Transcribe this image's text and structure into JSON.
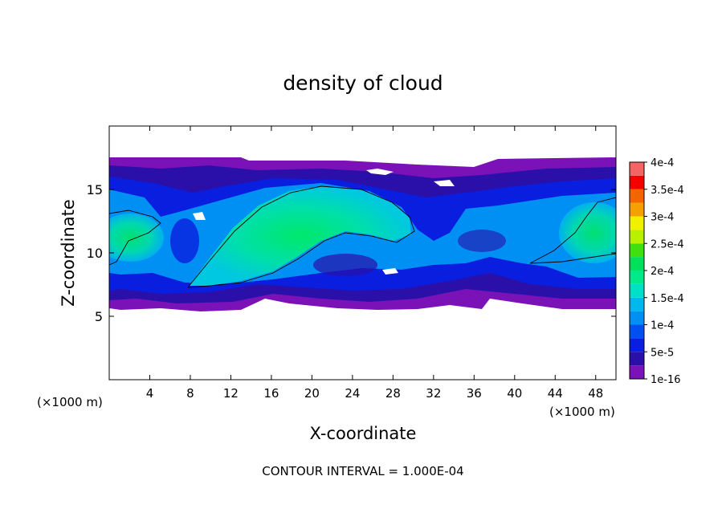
{
  "chart_data": {
    "type": "heatmap",
    "title": "density of cloud",
    "xlabel": "X-coordinate",
    "ylabel": "Z-coordinate",
    "x_unit_left": "(×1000 m)",
    "x_unit_right": "(×1000 m)",
    "xlim": [
      0,
      50
    ],
    "ylim": [
      0,
      20
    ],
    "x_ticks": [
      4,
      8,
      12,
      16,
      20,
      24,
      28,
      32,
      36,
      40,
      44,
      48
    ],
    "x_tick_labels": [
      "4",
      "8",
      "12",
      "16",
      "20",
      "24",
      "28",
      "32",
      "36",
      "40",
      "44",
      "48"
    ],
    "y_ticks": [
      5,
      10,
      15
    ],
    "y_tick_labels": [
      "5",
      "10",
      "15"
    ],
    "footer": "CONTOUR INTERVAL = 1.000E-04",
    "colorbar": {
      "levels": [
        {
          "value": 1e-16,
          "label": "1e-16",
          "color": "#7a12b8"
        },
        {
          "value": 2.5e-05,
          "label": "",
          "color": "#2a10a8"
        },
        {
          "value": 5e-05,
          "label": "5e-5",
          "color": "#0a1ee0"
        },
        {
          "value": 7.5e-05,
          "label": "",
          "color": "#0050f0"
        },
        {
          "value": 0.0001,
          "label": "1e-4",
          "color": "#0090f4"
        },
        {
          "value": 0.000125,
          "label": "",
          "color": "#00b8ee"
        },
        {
          "value": 0.00015,
          "label": "1.5e-4",
          "color": "#00e0c8"
        },
        {
          "value": 0.000175,
          "label": "",
          "color": "#00ea8c"
        },
        {
          "value": 0.0002,
          "label": "2e-4",
          "color": "#00e05a"
        },
        {
          "value": 0.000225,
          "label": "",
          "color": "#40e010"
        },
        {
          "value": 0.00025,
          "label": "2.5e-4",
          "color": "#b8f000"
        },
        {
          "value": 0.000275,
          "label": "",
          "color": "#f0f000"
        },
        {
          "value": 0.0003,
          "label": "3e-4",
          "color": "#f4a000"
        },
        {
          "value": 0.000325,
          "label": "",
          "color": "#f46400"
        },
        {
          "value": 0.00035,
          "label": "3.5e-4",
          "color": "#f40000"
        },
        {
          "value": 0.000375,
          "label": "",
          "color": "#f46464"
        },
        {
          "value": 0.0004,
          "label": "4e-4",
          "color": "#f49a9a"
        }
      ]
    },
    "contour_level": 0.0001,
    "cloud_layer_z": [
      5.5,
      17.5
    ]
  }
}
